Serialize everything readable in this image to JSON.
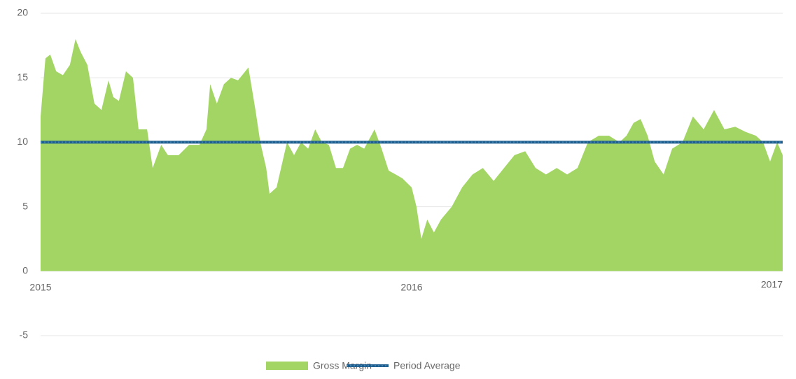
{
  "chart_data": {
    "type": "area",
    "x": [
      2015.0,
      2015.013,
      2015.026,
      2015.042,
      2015.06,
      2015.079,
      2015.094,
      2015.108,
      2015.126,
      2015.145,
      2015.164,
      2015.183,
      2015.196,
      2015.211,
      2015.23,
      2015.249,
      2015.264,
      2015.287,
      2015.302,
      2015.325,
      2015.343,
      2015.372,
      2015.4,
      2015.428,
      2015.447,
      2015.457,
      2015.475,
      2015.494,
      2015.513,
      2015.532,
      2015.56,
      2015.579,
      2015.592,
      2015.608,
      2015.617,
      2015.636,
      2015.664,
      2015.683,
      2015.702,
      2015.721,
      2015.74,
      2015.758,
      2015.777,
      2015.796,
      2015.815,
      2015.834,
      2015.853,
      2015.872,
      2015.9,
      2015.919,
      2015.938,
      2015.957,
      2015.975,
      2016.0,
      2016.013,
      2016.026,
      2016.042,
      2016.06,
      2016.079,
      2016.108,
      2016.136,
      2016.164,
      2016.192,
      2016.221,
      2016.249,
      2016.277,
      2016.306,
      2016.334,
      2016.362,
      2016.391,
      2016.419,
      2016.447,
      2016.475,
      2016.504,
      2016.532,
      2016.56,
      2016.579,
      2016.598,
      2016.617,
      2016.636,
      2016.655,
      2016.679,
      2016.702,
      2016.73,
      2016.758,
      2016.787,
      2016.815,
      2016.843,
      2016.872,
      2016.9,
      2016.928,
      2016.947,
      2016.966,
      2016.985,
      2017.0
    ],
    "series": [
      {
        "name": "Gross Margin",
        "color": "#a2d563",
        "values": [
          12,
          16.5,
          16.8,
          15.5,
          15.2,
          16,
          18,
          17,
          16,
          13,
          12.5,
          14.8,
          13.5,
          13.2,
          15.5,
          15,
          11,
          11,
          8,
          9.8,
          9,
          9,
          9.8,
          9.8,
          11,
          14.5,
          13,
          14.5,
          15,
          14.8,
          15.8,
          12.5,
          10,
          8,
          6,
          6.5,
          10,
          9,
          10,
          9.5,
          11,
          10,
          9.8,
          8,
          8,
          9.5,
          9.8,
          9.5,
          11,
          9.5,
          7.8,
          7.5,
          7.2,
          6.5,
          5,
          2.5,
          4,
          3,
          4,
          5,
          6.5,
          7.5,
          8,
          7,
          8,
          9,
          9.3,
          8,
          7.5,
          8,
          7.5,
          8,
          10,
          10.5,
          10.5,
          10,
          10.5,
          11.5,
          11.8,
          10.5,
          8.5,
          7.5,
          9.5,
          10,
          12,
          11,
          12.5,
          11,
          11.2,
          10.8,
          10.5,
          10,
          8.5,
          10,
          9
        ]
      },
      {
        "name": "Period Average",
        "color": "#1f5f8f",
        "values": [
          10,
          10,
          10,
          10,
          10,
          10,
          10,
          10,
          10,
          10,
          10,
          10,
          10,
          10,
          10,
          10,
          10,
          10,
          10,
          10,
          10,
          10,
          10,
          10,
          10,
          10,
          10,
          10,
          10,
          10,
          10,
          10,
          10,
          10,
          10,
          10,
          10,
          10,
          10,
          10,
          10,
          10,
          10,
          10,
          10,
          10,
          10,
          10,
          10,
          10,
          10,
          10,
          10,
          10,
          10,
          10,
          10,
          10,
          10,
          10,
          10,
          10,
          10,
          10,
          10,
          10,
          10,
          10,
          10,
          10,
          10,
          10,
          10,
          10,
          10,
          10,
          10,
          10,
          10,
          10,
          10,
          10,
          10,
          10,
          10,
          10,
          10,
          10,
          10,
          10,
          10,
          10,
          10,
          10,
          10
        ]
      }
    ],
    "xlim": [
      2015,
      2017
    ],
    "xticks": [
      2015,
      2016,
      2017
    ],
    "ylim": [
      -5,
      20
    ],
    "yticks": [
      -5,
      0,
      5,
      10,
      15,
      20
    ],
    "grid": true
  }
}
